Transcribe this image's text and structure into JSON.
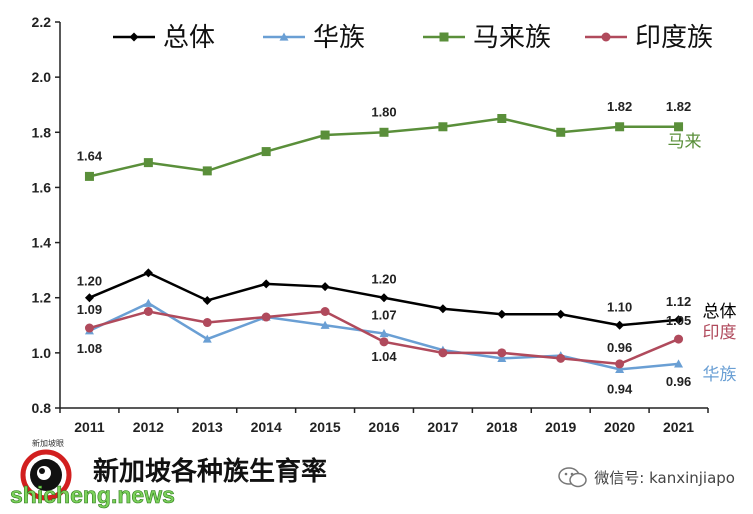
{
  "chart_data": {
    "type": "line",
    "x": [
      "2011",
      "2012",
      "2013",
      "2014",
      "2015",
      "2016",
      "2017",
      "2018",
      "2019",
      "2020",
      "2021"
    ],
    "ylim": [
      0.8,
      2.2
    ],
    "yticks": [
      "0.8",
      "1.0",
      "1.2",
      "1.4",
      "1.6",
      "1.8",
      "2.0",
      "2.2"
    ],
    "grid": false,
    "legend_position": "top",
    "series": [
      {
        "name": "总体",
        "color": "#000000",
        "marker": "diamond",
        "values": [
          1.2,
          1.29,
          1.19,
          1.25,
          1.24,
          1.2,
          1.16,
          1.14,
          1.14,
          1.1,
          1.12
        ]
      },
      {
        "name": "华族",
        "color": "#6a9fd4",
        "marker": "triangle",
        "values": [
          1.08,
          1.18,
          1.05,
          1.13,
          1.1,
          1.07,
          1.01,
          0.98,
          0.99,
          0.94,
          0.96
        ]
      },
      {
        "name": "马来族",
        "color": "#5a8f3a",
        "marker": "square",
        "values": [
          1.64,
          1.69,
          1.66,
          1.73,
          1.79,
          1.8,
          1.82,
          1.85,
          1.8,
          1.82,
          1.82
        ]
      },
      {
        "name": "印度族",
        "color": "#b04a5c",
        "marker": "circle",
        "values": [
          1.09,
          1.15,
          1.11,
          1.13,
          1.15,
          1.04,
          1.0,
          1.0,
          0.98,
          0.96,
          1.05
        ]
      }
    ],
    "data_labels": [
      {
        "series": 2,
        "index": 0,
        "text": "1.64"
      },
      {
        "series": 2,
        "index": 5,
        "text": "1.80"
      },
      {
        "series": 2,
        "index": 9,
        "text": "1.82"
      },
      {
        "series": 2,
        "index": 10,
        "text": "1.82"
      },
      {
        "series": 0,
        "index": 0,
        "text": "1.20"
      },
      {
        "series": 3,
        "index": 0,
        "text": "1.09"
      },
      {
        "series": 1,
        "index": 0,
        "text": "1.08"
      },
      {
        "series": 0,
        "index": 5,
        "text": "1.20"
      },
      {
        "series": 1,
        "index": 5,
        "text": "1.07"
      },
      {
        "series": 3,
        "index": 5,
        "text": "1.04"
      },
      {
        "series": 0,
        "index": 9,
        "text": "1.10"
      },
      {
        "series": 0,
        "index": 10,
        "text": "1.12"
      },
      {
        "series": 3,
        "index": 9,
        "text": "0.96"
      },
      {
        "series": 1,
        "index": 9,
        "text": "0.94"
      },
      {
        "series": 3,
        "index": 10,
        "text": "1.05"
      },
      {
        "series": 1,
        "index": 10,
        "text": "0.96"
      }
    ],
    "end_labels": [
      {
        "series": 2,
        "text": "马来"
      },
      {
        "series": 0,
        "text": "总体"
      },
      {
        "series": 3,
        "text": "印度"
      },
      {
        "series": 1,
        "text": "华族"
      }
    ]
  },
  "footer": {
    "title": "新加坡各种族生育率",
    "watermark": "微信号: kanxinjiapo",
    "watermark_icon": "wechat-icon",
    "site": "shicheng.news",
    "logo_text": "新加坡眼"
  }
}
